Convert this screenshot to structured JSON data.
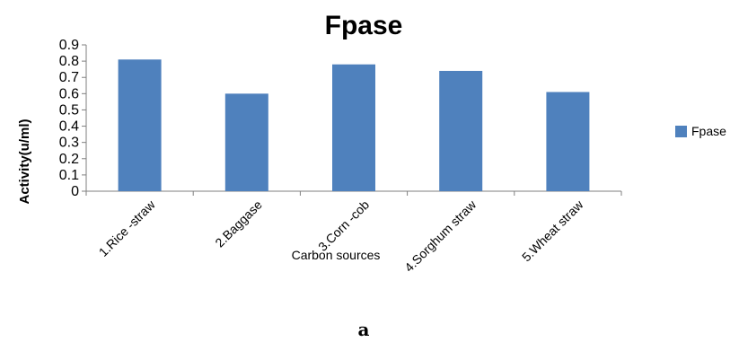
{
  "chart_data": {
    "type": "bar",
    "title": "Fpase",
    "xlabel": "Carbon sources",
    "ylabel": "Activity(u/ml)",
    "categories": [
      "1.Rice -straw",
      "2.Baggase",
      "3.Corn -cob",
      "4.Sorghum straw",
      "5.Wheat straw"
    ],
    "series": [
      {
        "name": "Fpase",
        "values": [
          0.81,
          0.6,
          0.78,
          0.74,
          0.61
        ]
      }
    ],
    "ylim": [
      0,
      0.9
    ],
    "yticks": [
      "0",
      "0.1",
      "0.2",
      "0.3",
      "0.4",
      "0.5",
      "0.6",
      "0.7",
      "0.8",
      "0.9"
    ],
    "grid": false,
    "legend_position": "right",
    "bar_color": "#4f81bd"
  },
  "caption": "a"
}
